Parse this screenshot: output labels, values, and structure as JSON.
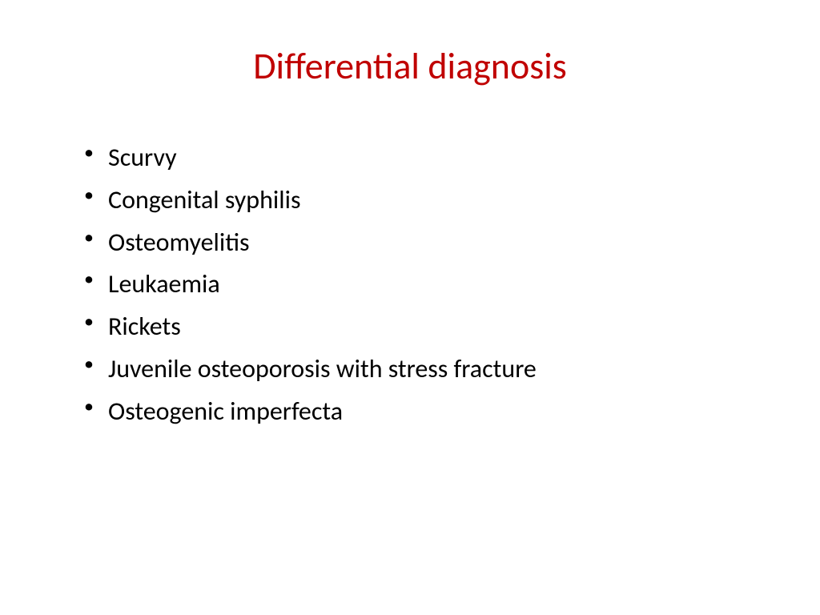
{
  "slide": {
    "title": "Differential diagnosis",
    "title_color": "#c00000",
    "title_fontsize": 46,
    "background_color": "#ffffff",
    "bullets": [
      "Scurvy",
      "Congenital syphilis",
      "Osteomyelitis",
      "Leukaemia",
      "Rickets",
      "Juvenile osteoporosis with stress fracture",
      "Osteogenic imperfecta"
    ],
    "bullet_color": "#000000",
    "bullet_fontsize": 32
  }
}
